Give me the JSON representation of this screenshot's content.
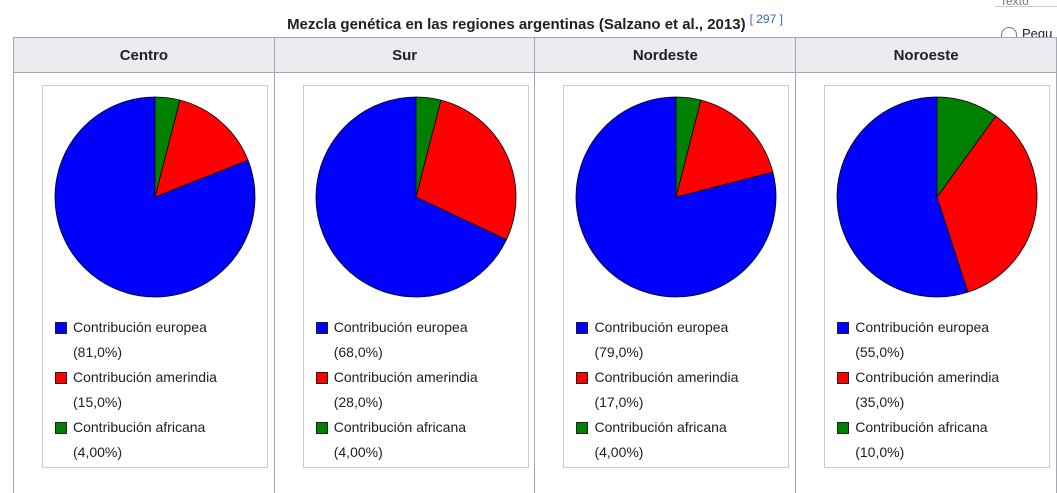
{
  "caption": {
    "title": "Mezcla genética en las regiones argentinas (Salzano et al., 2013)",
    "ref": "[ 297 ]"
  },
  "corner": {
    "top_text": "Texto",
    "radio_label": "Pequ"
  },
  "legend_labels": [
    "Contribución europea",
    "Contribución amerindia",
    "Contribución africana"
  ],
  "colors": {
    "europea": "#0000ff",
    "amerindia": "#ff0000",
    "africana": "#008000",
    "header_bg": "#eaecf0",
    "border": "#a2a9b1"
  },
  "chart_data": [
    {
      "type": "pie",
      "title": "Centro",
      "series": [
        {
          "name": "Contribución europea",
          "value": 81.0,
          "label": "(81,0%)",
          "color": "#0000ff"
        },
        {
          "name": "Contribución amerindia",
          "value": 15.0,
          "label": "(15,0%)",
          "color": "#ff0000"
        },
        {
          "name": "Contribución africana",
          "value": 4.0,
          "label": "(4,00%)",
          "color": "#008000"
        }
      ]
    },
    {
      "type": "pie",
      "title": "Sur",
      "series": [
        {
          "name": "Contribución europea",
          "value": 68.0,
          "label": "(68,0%)",
          "color": "#0000ff"
        },
        {
          "name": "Contribución amerindia",
          "value": 28.0,
          "label": "(28,0%)",
          "color": "#ff0000"
        },
        {
          "name": "Contribución africana",
          "value": 4.0,
          "label": "(4,00%)",
          "color": "#008000"
        }
      ]
    },
    {
      "type": "pie",
      "title": "Nordeste",
      "series": [
        {
          "name": "Contribución europea",
          "value": 79.0,
          "label": "(79,0%)",
          "color": "#0000ff"
        },
        {
          "name": "Contribución amerindia",
          "value": 17.0,
          "label": "(17,0%)",
          "color": "#ff0000"
        },
        {
          "name": "Contribución africana",
          "value": 4.0,
          "label": "(4,00%)",
          "color": "#008000"
        }
      ]
    },
    {
      "type": "pie",
      "title": "Noroeste",
      "series": [
        {
          "name": "Contribución europea",
          "value": 55.0,
          "label": "(55,0%)",
          "color": "#0000ff"
        },
        {
          "name": "Contribución amerindia",
          "value": 35.0,
          "label": "(35,0%)",
          "color": "#ff0000"
        },
        {
          "name": "Contribución africana",
          "value": 10.0,
          "label": "(10,0%)",
          "color": "#008000"
        }
      ]
    }
  ]
}
